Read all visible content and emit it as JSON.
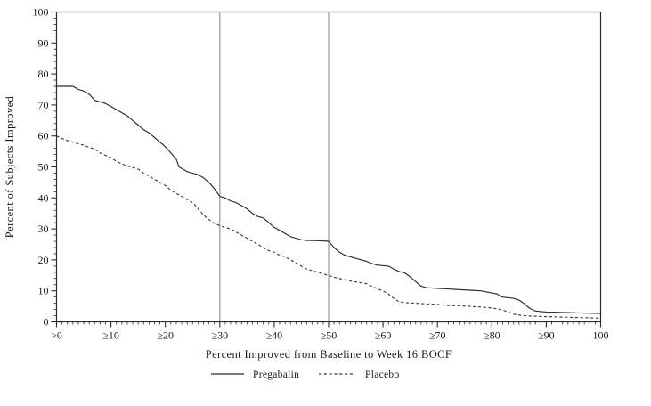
{
  "figure": {
    "background": "#ffffff",
    "text_color": "#1a1a1a",
    "frame_color": "#2b2b2b",
    "reference_line_color": "#a6a6a6"
  },
  "chart_data": {
    "type": "line",
    "title": "",
    "xlabel": "Percent Improved from Baseline to Week 16 BOCF",
    "ylabel": "Percent of Subjects Improved",
    "xlim": [
      0,
      100
    ],
    "ylim": [
      0,
      100
    ],
    "grid": false,
    "frame": "box",
    "legend_position": "bottom",
    "x_minor_step": 1,
    "y_minor_step": 2,
    "reference_lines": [
      {
        "axis": "x",
        "value": 30
      },
      {
        "axis": "x",
        "value": 50
      }
    ],
    "x_major_ticks": [
      {
        "value": 0,
        "label": ">0"
      },
      {
        "value": 10,
        "label": "≥10"
      },
      {
        "value": 20,
        "label": "≥20"
      },
      {
        "value": 30,
        "label": "≥30"
      },
      {
        "value": 40,
        "label": "≥40"
      },
      {
        "value": 50,
        "label": "≥50"
      },
      {
        "value": 60,
        "label": "≥60"
      },
      {
        "value": 70,
        "label": "≥70"
      },
      {
        "value": 80,
        "label": "≥80"
      },
      {
        "value": 90,
        "label": "≥90"
      },
      {
        "value": 100,
        "label": "100"
      }
    ],
    "y_major_ticks": [
      {
        "value": 0,
        "label": "0"
      },
      {
        "value": 10,
        "label": "10"
      },
      {
        "value": 20,
        "label": "20"
      },
      {
        "value": 30,
        "label": "30"
      },
      {
        "value": 40,
        "label": "40"
      },
      {
        "value": 50,
        "label": "50"
      },
      {
        "value": 60,
        "label": "60"
      },
      {
        "value": 70,
        "label": "70"
      },
      {
        "value": 80,
        "label": "80"
      },
      {
        "value": 90,
        "label": "90"
      },
      {
        "value": 100,
        "label": "100"
      }
    ],
    "series": [
      {
        "name": "Pregabalin",
        "style": "solid",
        "color": "#2b2b2b",
        "points": [
          [
            0,
            76
          ],
          [
            3,
            76
          ],
          [
            4,
            75
          ],
          [
            5,
            74.5
          ],
          [
            6,
            73.5
          ],
          [
            7,
            71.5
          ],
          [
            8,
            71
          ],
          [
            9,
            70.5
          ],
          [
            10,
            69.5
          ],
          [
            11,
            68.5
          ],
          [
            12,
            67.5
          ],
          [
            13,
            66.5
          ],
          [
            14,
            65
          ],
          [
            15,
            63.5
          ],
          [
            16,
            62
          ],
          [
            17,
            61
          ],
          [
            18,
            59.5
          ],
          [
            19,
            58
          ],
          [
            20,
            56.5
          ],
          [
            21,
            54.5
          ],
          [
            22,
            52.5
          ],
          [
            22.5,
            50
          ],
          [
            23,
            49.5
          ],
          [
            24,
            48.5
          ],
          [
            25,
            48
          ],
          [
            26,
            47.5
          ],
          [
            27,
            46.5
          ],
          [
            28,
            45
          ],
          [
            29,
            43
          ],
          [
            30,
            40.5
          ],
          [
            31,
            40
          ],
          [
            32,
            39
          ],
          [
            33,
            38.5
          ],
          [
            34,
            37.5
          ],
          [
            35,
            36.5
          ],
          [
            36,
            35
          ],
          [
            37,
            34
          ],
          [
            38,
            33.5
          ],
          [
            39,
            32
          ],
          [
            40,
            30.5
          ],
          [
            41,
            29.5
          ],
          [
            42,
            28.5
          ],
          [
            43,
            27.5
          ],
          [
            44,
            27
          ],
          [
            45,
            26.5
          ],
          [
            46,
            26.3
          ],
          [
            48,
            26.2
          ],
          [
            50,
            26
          ],
          [
            51,
            24
          ],
          [
            52,
            22.5
          ],
          [
            53,
            21.5
          ],
          [
            54,
            21
          ],
          [
            55,
            20.5
          ],
          [
            56,
            20
          ],
          [
            57,
            19.5
          ],
          [
            58,
            18.8
          ],
          [
            59,
            18.3
          ],
          [
            61,
            18
          ],
          [
            62,
            17
          ],
          [
            63,
            16.2
          ],
          [
            64,
            15.8
          ],
          [
            65,
            14.5
          ],
          [
            66,
            13
          ],
          [
            67,
            11.5
          ],
          [
            68,
            11
          ],
          [
            70,
            10.8
          ],
          [
            72,
            10.6
          ],
          [
            74,
            10.4
          ],
          [
            76,
            10.2
          ],
          [
            78,
            10
          ],
          [
            80,
            9.3
          ],
          [
            81,
            9
          ],
          [
            82,
            8
          ],
          [
            84,
            7.6
          ],
          [
            85,
            7
          ],
          [
            86,
            5.8
          ],
          [
            87,
            4.3
          ],
          [
            88,
            3.5
          ],
          [
            90,
            3.2
          ],
          [
            92,
            3.1
          ],
          [
            94,
            3
          ],
          [
            96,
            2.9
          ],
          [
            98,
            2.8
          ],
          [
            100,
            2.7
          ]
        ]
      },
      {
        "name": "Placebo",
        "style": "dashed",
        "color": "#3a3a3a",
        "points": [
          [
            0,
            60
          ],
          [
            1,
            59.2
          ],
          [
            2,
            58.5
          ],
          [
            3,
            58
          ],
          [
            4,
            57.5
          ],
          [
            5,
            57
          ],
          [
            6,
            56.3
          ],
          [
            7,
            55.8
          ],
          [
            8,
            54.5
          ],
          [
            9,
            53.7
          ],
          [
            10,
            53
          ],
          [
            11,
            51.8
          ],
          [
            12,
            51
          ],
          [
            13,
            50.3
          ],
          [
            14,
            49.8
          ],
          [
            15,
            49.3
          ],
          [
            16,
            48
          ],
          [
            17,
            47
          ],
          [
            18,
            46
          ],
          [
            19,
            45
          ],
          [
            20,
            44
          ],
          [
            21,
            42.5
          ],
          [
            22,
            41.5
          ],
          [
            23,
            40.5
          ],
          [
            24,
            39.5
          ],
          [
            25,
            38.5
          ],
          [
            26,
            36.5
          ],
          [
            27,
            34.5
          ],
          [
            28,
            33
          ],
          [
            29,
            31.8
          ],
          [
            30,
            31
          ],
          [
            31,
            30.5
          ],
          [
            32,
            30
          ],
          [
            33,
            29
          ],
          [
            34,
            28
          ],
          [
            35,
            27
          ],
          [
            36,
            26
          ],
          [
            37,
            25
          ],
          [
            38,
            24
          ],
          [
            39,
            23
          ],
          [
            40,
            22.5
          ],
          [
            41,
            21.5
          ],
          [
            42,
            21
          ],
          [
            43,
            20
          ],
          [
            44,
            19
          ],
          [
            45,
            18
          ],
          [
            46,
            17
          ],
          [
            47,
            16.5
          ],
          [
            48,
            16
          ],
          [
            49,
            15.5
          ],
          [
            50,
            15
          ],
          [
            51,
            14.4
          ],
          [
            52,
            14
          ],
          [
            53,
            13.6
          ],
          [
            54,
            13.2
          ],
          [
            55,
            12.9
          ],
          [
            56,
            12.6
          ],
          [
            57,
            12.3
          ],
          [
            58,
            11.4
          ],
          [
            59,
            10.6
          ],
          [
            60,
            10
          ],
          [
            61,
            9
          ],
          [
            62,
            7.5
          ],
          [
            63,
            6.5
          ],
          [
            64,
            6.2
          ],
          [
            66,
            6
          ],
          [
            68,
            5.8
          ],
          [
            70,
            5.6
          ],
          [
            72,
            5.3
          ],
          [
            74,
            5.2
          ],
          [
            76,
            5
          ],
          [
            78,
            4.8
          ],
          [
            80,
            4.5
          ],
          [
            81,
            4.2
          ],
          [
            82,
            3.8
          ],
          [
            83,
            3.2
          ],
          [
            84,
            2.5
          ],
          [
            85,
            2.2
          ],
          [
            86,
            2
          ],
          [
            88,
            1.8
          ],
          [
            90,
            1.7
          ],
          [
            92,
            1.6
          ],
          [
            94,
            1.5
          ],
          [
            96,
            1.4
          ],
          [
            98,
            1.3
          ],
          [
            100,
            1.2
          ]
        ]
      }
    ]
  }
}
